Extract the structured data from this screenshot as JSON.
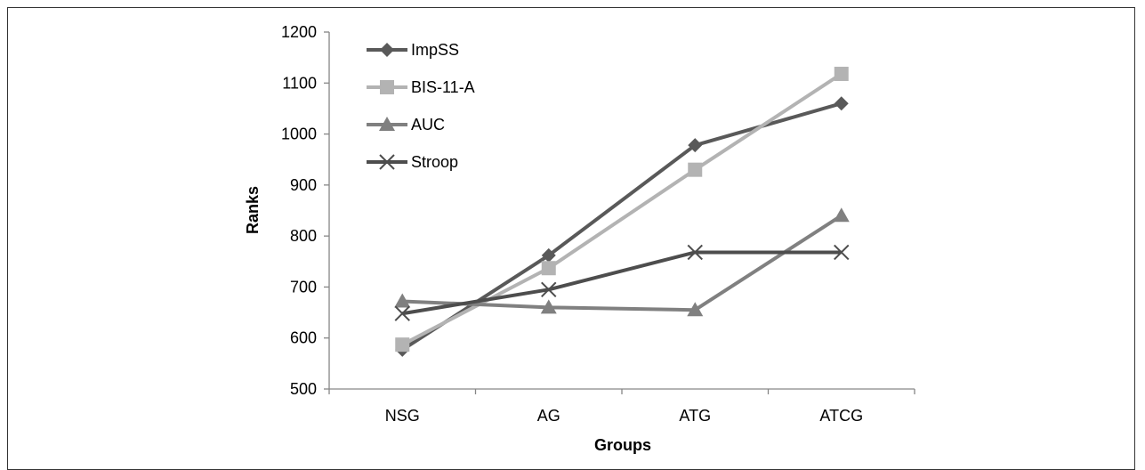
{
  "chart_data": {
    "type": "line",
    "title": "",
    "xlabel": "Groups",
    "ylabel": "Ranks",
    "categories": [
      "NSG",
      "AG",
      "ATG",
      "ATCG"
    ],
    "ylim": [
      500,
      1200
    ],
    "yticks": [
      500,
      600,
      700,
      800,
      900,
      1000,
      1100,
      1200
    ],
    "grid": false,
    "legend_position": "top-left",
    "series": [
      {
        "name": "ImpSS",
        "values": [
          577,
          762,
          978,
          1060
        ],
        "color": "#595959",
        "marker": "diamond"
      },
      {
        "name": "BIS-11-A",
        "values": [
          587,
          737,
          930,
          1118
        ],
        "color": "#b3b3b3",
        "marker": "square"
      },
      {
        "name": "AUC",
        "values": [
          672,
          660,
          655,
          840
        ],
        "color": "#808080",
        "marker": "triangle"
      },
      {
        "name": "Stroop",
        "values": [
          648,
          695,
          768,
          768
        ],
        "color": "#4d4d4d",
        "marker": "x"
      }
    ]
  }
}
